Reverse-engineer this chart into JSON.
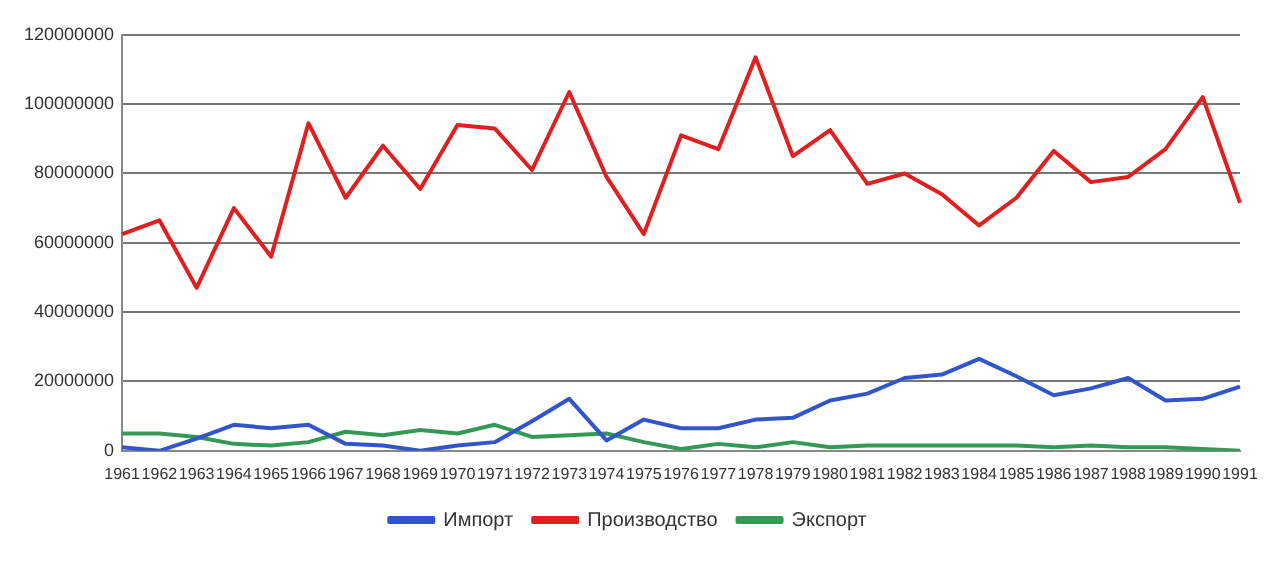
{
  "chart_data": {
    "type": "line",
    "categories": [
      "1961",
      "1962",
      "1963",
      "1964",
      "1965",
      "1966",
      "1967",
      "1968",
      "1969",
      "1970",
      "1971",
      "1972",
      "1973",
      "1974",
      "1975",
      "1976",
      "1977",
      "1978",
      "1979",
      "1980",
      "1981",
      "1982",
      "1983",
      "1984",
      "1985",
      "1986",
      "1987",
      "1988",
      "1989",
      "1990",
      "1991"
    ],
    "series": [
      {
        "name": "Импорт",
        "color": "#3355cc",
        "values": [
          1000000,
          0,
          3500000,
          7500000,
          6500000,
          7500000,
          2000000,
          1500000,
          0,
          1500000,
          2500000,
          8500000,
          15000000,
          3000000,
          9000000,
          6500000,
          6500000,
          9000000,
          9500000,
          14500000,
          16500000,
          21000000,
          22000000,
          26500000,
          21500000,
          16000000,
          18000000,
          21000000,
          14500000,
          15000000,
          18500000
        ]
      },
      {
        "name": "Производство",
        "color": "#e02020",
        "values": [
          62500000,
          66500000,
          47000000,
          70000000,
          56000000,
          94500000,
          73000000,
          88000000,
          75500000,
          94000000,
          93000000,
          81000000,
          103500000,
          79000000,
          62500000,
          91000000,
          87000000,
          113500000,
          85000000,
          92500000,
          77000000,
          80000000,
          74000000,
          65000000,
          73000000,
          86500000,
          77500000,
          79000000,
          87000000,
          102000000,
          71500000
        ]
      },
      {
        "name": "Экспорт",
        "color": "#339955",
        "values": [
          5000000,
          5000000,
          4000000,
          2000000,
          1500000,
          2500000,
          5500000,
          4500000,
          6000000,
          5000000,
          7500000,
          4000000,
          4500000,
          5000000,
          2500000,
          500000,
          2000000,
          1000000,
          2500000,
          1000000,
          1500000,
          1500000,
          1500000,
          1500000,
          1500000,
          1000000,
          1500000,
          1000000,
          1000000,
          500000,
          0
        ]
      }
    ],
    "ylim": [
      0,
      120000000
    ],
    "yticks": [
      0,
      20000000,
      40000000,
      60000000,
      80000000,
      100000000,
      120000000
    ],
    "grid": "y",
    "legend": "bottom",
    "marker": "none",
    "line_style": "solid"
  }
}
